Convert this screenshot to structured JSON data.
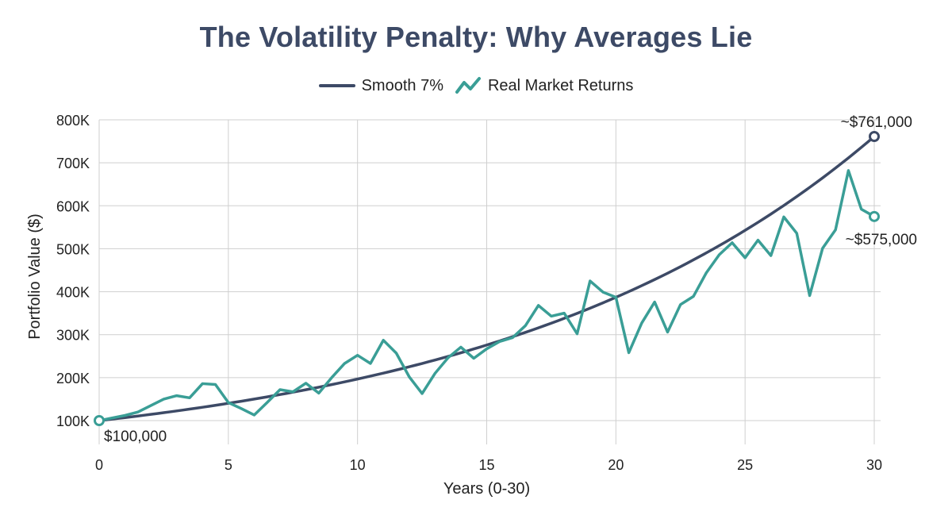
{
  "chart_data": {
    "type": "line",
    "title": "The Volatility Penalty: Why Averages Lie",
    "xlabel": "Years (0-30)",
    "ylabel": "Portfolio Value ($)",
    "xlim": [
      0,
      30
    ],
    "ylim": [
      100000,
      800000
    ],
    "x_ticks": [
      0,
      5,
      10,
      15,
      20,
      25,
      30
    ],
    "y_ticks": [
      100000,
      200000,
      300000,
      400000,
      500000,
      600000,
      700000,
      800000
    ],
    "y_tick_labels": [
      "100K",
      "200K",
      "300K",
      "400K",
      "500K",
      "600K",
      "700K",
      "800K"
    ],
    "grid": true,
    "legend_placement": "top-center",
    "series": [
      {
        "name": "Smooth 7%",
        "color": "#3d4a66",
        "style": "smooth-curve",
        "start_value": 100000,
        "annual_rate": 0.07,
        "x": [
          0,
          5,
          10,
          15,
          20,
          25,
          30
        ],
        "y": [
          100000,
          140255,
          196715,
          275903,
          386968,
          542743,
          761226
        ]
      },
      {
        "name": "Real Market Returns",
        "color": "#3a9e96",
        "x": [
          0,
          0.5,
          1,
          1.5,
          2,
          2.5,
          3,
          3.5,
          4,
          4.5,
          5,
          5.5,
          6,
          6.5,
          7,
          7.5,
          8,
          8.5,
          9,
          9.5,
          10,
          10.5,
          11,
          11.5,
          12,
          12.5,
          13,
          13.5,
          14,
          14.5,
          15,
          15.5,
          16,
          16.5,
          17,
          17.5,
          18,
          18.5,
          19,
          19.5,
          20,
          20.5,
          21,
          21.5,
          22,
          22.5,
          23,
          23.5,
          24,
          24.5,
          25,
          25.5,
          26,
          26.5,
          27,
          27.5,
          28,
          28.5,
          29,
          29.5,
          30
        ],
        "y": [
          100000,
          106000,
          112000,
          120000,
          135000,
          150000,
          158000,
          153000,
          186000,
          184000,
          142000,
          128000,
          113000,
          142000,
          172000,
          167000,
          187000,
          164000,
          200000,
          233000,
          252000,
          233000,
          287000,
          257000,
          202000,
          163000,
          210000,
          246000,
          271000,
          245000,
          267000,
          284000,
          293000,
          321000,
          368000,
          343000,
          350000,
          302000,
          425000,
          399000,
          387000,
          258000,
          327000,
          376000,
          306000,
          370000,
          389000,
          444000,
          486000,
          514000,
          479000,
          520000,
          484000,
          574000,
          536000,
          391000,
          501000,
          544000,
          682000,
          592000,
          575000
        ]
      }
    ],
    "annotations": [
      {
        "text": "~$761,000",
        "x": 30,
        "y": 761000
      },
      {
        "text": "~$575,000",
        "x": 30,
        "y": 575000
      },
      {
        "text": "$100,000",
        "x": 0,
        "y": 100000
      }
    ]
  }
}
